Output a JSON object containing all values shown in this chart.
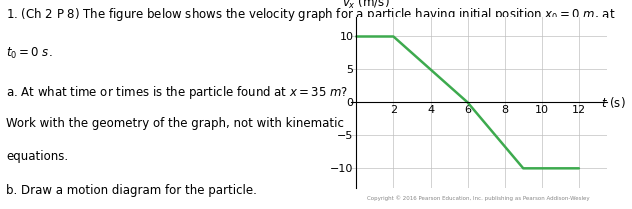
{
  "line_x": [
    0,
    2,
    6,
    9,
    12
  ],
  "line_y": [
    10,
    10,
    0,
    -10,
    -10
  ],
  "line_color": "#3daa4e",
  "line_width": 1.8,
  "xlim": [
    -0.3,
    13.5
  ],
  "ylim": [
    -13,
    13
  ],
  "xticks": [
    2,
    4,
    6,
    8,
    10,
    12
  ],
  "yticks": [
    -10,
    -5,
    0,
    5,
    10
  ],
  "grid_color": "#c0c0c0",
  "background_color": "#ffffff",
  "copyright_text": "Copyright © 2016 Pearson Education, Inc. publishing as Pearson Addison-Wesley",
  "font_size_title": 8.5,
  "font_size_body": 8.5,
  "font_size_axis_label": 8.5,
  "font_size_tick": 8.0,
  "font_size_copyright": 4.0
}
